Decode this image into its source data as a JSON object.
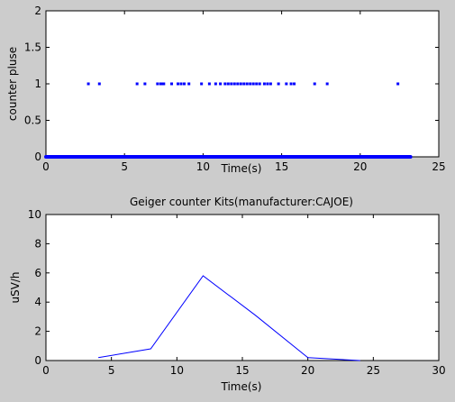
{
  "chart_data": [
    {
      "type": "scatter",
      "title": "",
      "xlabel": "Time(s)",
      "ylabel": "counter pluse",
      "xlim": [
        0,
        25
      ],
      "ylim": [
        0,
        2
      ],
      "xticks": [
        "0",
        "5",
        "10",
        "15",
        "20",
        "25"
      ],
      "yticks": [
        "0",
        "0.5",
        "1",
        "1.5",
        "2"
      ],
      "grid": false,
      "series": [
        {
          "color": "#0000ff",
          "marker": "dot",
          "pulse_times": [
            2.7,
            3.4,
            5.8,
            6.3,
            7.1,
            7.3,
            7.4,
            7.5,
            8.0,
            8.4,
            8.6,
            8.8,
            9.1,
            9.9,
            10.4,
            10.8,
            11.1,
            11.4,
            11.6,
            11.8,
            12.0,
            12.2,
            12.4,
            12.6,
            12.8,
            13.0,
            13.2,
            13.4,
            13.6,
            13.9,
            14.1,
            14.3,
            14.8,
            15.3,
            15.6,
            15.8,
            17.1,
            17.9,
            22.4
          ],
          "baseline_x_range": [
            0,
            23.2
          ],
          "baseline_value": 0,
          "pulse_value": 1
        }
      ]
    },
    {
      "type": "line",
      "title": "Geiger counter Kits(manufacturer:CAJOE)",
      "xlabel": "Time(s)",
      "ylabel": "uSV/h",
      "xlim": [
        0,
        30
      ],
      "ylim": [
        0,
        10
      ],
      "xticks": [
        "0",
        "5",
        "10",
        "15",
        "20",
        "25",
        "30"
      ],
      "yticks": [
        "0",
        "2",
        "4",
        "6",
        "8",
        "10"
      ],
      "grid": false,
      "series": [
        {
          "color": "#0000ff",
          "x": [
            4,
            8,
            12,
            16,
            20,
            24
          ],
          "y": [
            0.2,
            0.8,
            5.8,
            3.1,
            0.2,
            0.0
          ]
        }
      ]
    }
  ]
}
